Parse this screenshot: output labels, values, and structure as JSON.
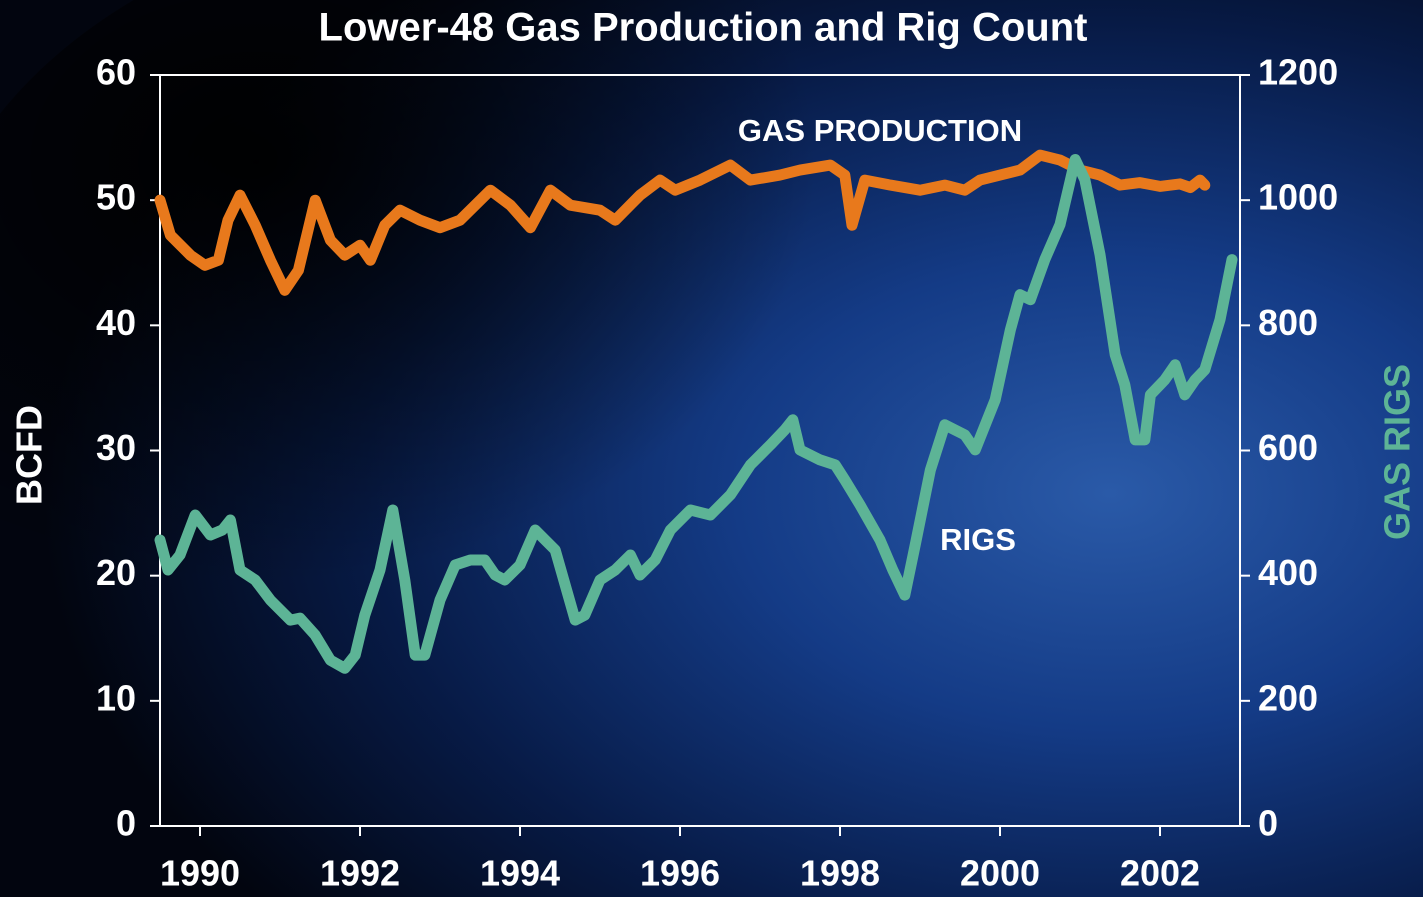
{
  "chart_data": {
    "type": "line",
    "title": "Lower-48 Gas Production and Rig Count",
    "y_label": "BCFD",
    "y2_label": "GAS RIGS",
    "annotations": [
      "GAS PRODUCTION",
      "RIGS"
    ],
    "xlim": [
      1989.5,
      2003.0
    ],
    "xticks": [
      1990,
      1992,
      1994,
      1996,
      1998,
      2000,
      2002
    ],
    "ylim": [
      0,
      60
    ],
    "yticks": [
      0,
      10,
      20,
      30,
      40,
      50,
      60
    ],
    "y2lim": [
      0,
      1200
    ],
    "y2ticks": [
      0,
      200,
      400,
      600,
      800,
      1000,
      1200
    ],
    "series": [
      {
        "name": "GAS PRODUCTION",
        "color": "#e8791c",
        "axis": "y",
        "x": [
          1989.5,
          1989.63,
          1989.88,
          1990.06,
          1990.23,
          1990.35,
          1990.5,
          1990.69,
          1990.88,
          1991.06,
          1991.23,
          1991.44,
          1991.63,
          1991.81,
          1992.0,
          1992.13,
          1992.31,
          1992.5,
          1992.75,
          1993.0,
          1993.25,
          1993.44,
          1993.63,
          1993.88,
          1994.13,
          1994.38,
          1994.63,
          1995.0,
          1995.19,
          1995.5,
          1995.75,
          1995.94,
          1996.25,
          1996.63,
          1996.88,
          1997.25,
          1997.5,
          1997.88,
          1998.06,
          1998.15,
          1998.31,
          1998.63,
          1999.0,
          1999.31,
          1999.56,
          1999.75,
          2000.25,
          2000.5,
          2000.75,
          2001.0,
          2001.25,
          2001.5,
          2001.75,
          2002.0,
          2002.25,
          2002.38,
          2002.5,
          2002.56
        ],
        "values": [
          50.0,
          47.2,
          45.6,
          44.8,
          45.2,
          48.4,
          50.4,
          48.0,
          45.2,
          42.8,
          44.4,
          50.0,
          46.8,
          45.6,
          46.4,
          45.2,
          48.0,
          49.2,
          48.4,
          47.8,
          48.4,
          49.6,
          50.8,
          49.6,
          47.8,
          50.8,
          49.6,
          49.2,
          48.4,
          50.4,
          51.6,
          50.8,
          51.6,
          52.8,
          51.6,
          52.0,
          52.4,
          52.8,
          52.0,
          48.0,
          51.6,
          51.2,
          50.8,
          51.2,
          50.8,
          51.6,
          52.4,
          53.6,
          53.2,
          52.4,
          52.0,
          51.2,
          51.4,
          51.1,
          51.3,
          51.0,
          51.6,
          51.2
        ]
      },
      {
        "name": "RIGS",
        "color": "#5db496",
        "axis": "y2",
        "x": [
          1989.5,
          1989.6,
          1989.75,
          1989.94,
          1990.13,
          1990.28,
          1990.38,
          1990.5,
          1990.69,
          1990.88,
          1991.13,
          1991.25,
          1991.44,
          1991.63,
          1991.81,
          1991.94,
          1992.06,
          1992.25,
          1992.41,
          1992.56,
          1992.69,
          1992.81,
          1993.0,
          1993.19,
          1993.38,
          1993.56,
          1993.69,
          1993.81,
          1994.0,
          1994.19,
          1994.44,
          1994.69,
          1994.81,
          1995.0,
          1995.19,
          1995.38,
          1995.5,
          1995.69,
          1995.88,
          1996.13,
          1996.38,
          1996.63,
          1996.88,
          1997.13,
          1997.31,
          1997.41,
          1997.5,
          1997.75,
          1997.94,
          1998.06,
          1998.25,
          1998.5,
          1998.66,
          1998.81,
          1998.94,
          1999.13,
          1999.31,
          1999.56,
          1999.69,
          1999.94,
          2000.13,
          2000.25,
          2000.38,
          2000.56,
          2000.75,
          2000.94,
          2001.06,
          2001.25,
          2001.44,
          2001.56,
          2001.69,
          2001.81,
          2001.88,
          2002.06,
          2002.19,
          2002.31,
          2002.44,
          2002.56,
          2002.75,
          2002.9
        ],
        "values": [
          457,
          409,
          433,
          497,
          465,
          473,
          489,
          409,
          393,
          361,
          329,
          332,
          305,
          265,
          252,
          273,
          337,
          409,
          505,
          393,
          273,
          273,
          361,
          417,
          425,
          425,
          401,
          393,
          417,
          473,
          441,
          329,
          337,
          393,
          409,
          433,
          401,
          425,
          473,
          505,
          497,
          529,
          577,
          609,
          633,
          649,
          601,
          585,
          577,
          553,
          513,
          457,
          409,
          369,
          449,
          569,
          641,
          625,
          601,
          681,
          793,
          849,
          841,
          905,
          961,
          1065,
          1033,
          913,
          753,
          705,
          617,
          617,
          689,
          713,
          737,
          689,
          713,
          729,
          809,
          905
        ]
      }
    ]
  }
}
